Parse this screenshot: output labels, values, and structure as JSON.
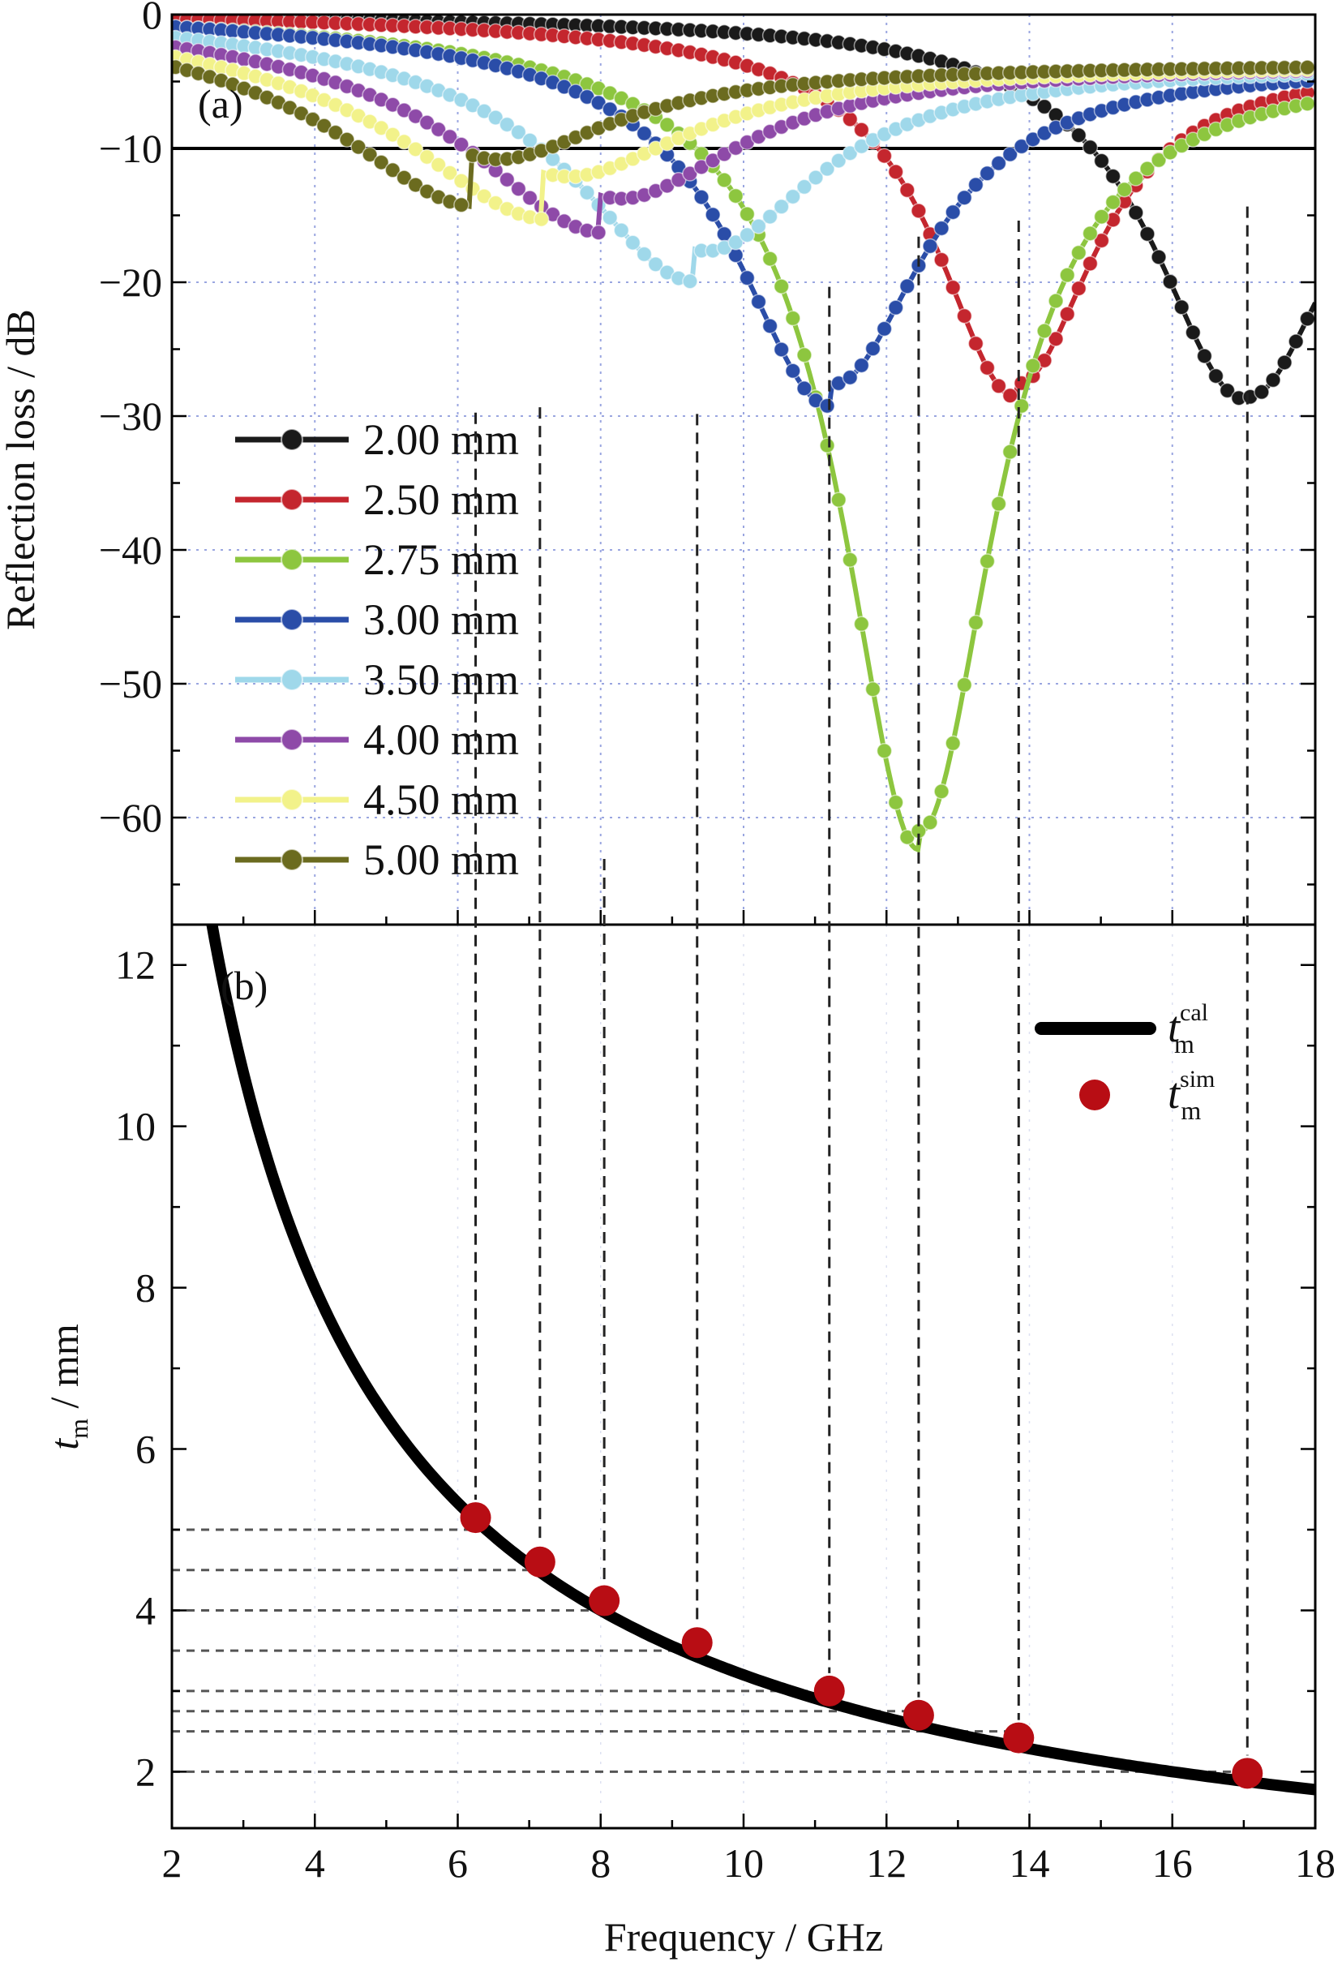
{
  "chart_data": [
    {
      "panel": "(a)",
      "type": "line",
      "ylabel": "Reflection loss / dB",
      "xlim": [
        2,
        18
      ],
      "ylim": [
        -68,
        0
      ],
      "yticks": [
        0,
        -10,
        -20,
        -30,
        -40,
        -50,
        -60
      ],
      "ytick_labels": [
        "0",
        "−10",
        "−20",
        "−30",
        "−40",
        "−50",
        "−60"
      ],
      "grid": true,
      "reference_line": -10,
      "legend_placement": "center-left",
      "series": [
        {
          "name": "2.00 mm",
          "color": "#1a1a1a",
          "f0": 17.0,
          "depth": -28.5,
          "width": 1.55,
          "lowAmp": -0.3
        },
        {
          "name": "2.50 mm",
          "color": "#c4262e",
          "f0": 13.8,
          "depth": -27.5,
          "width": 1.35,
          "lowAmp": -1.5
        },
        {
          "name": "2.75 mm",
          "color": "#8dc63f",
          "f0": 12.45,
          "depth": -61.0,
          "width": 1.3,
          "lowAmp": -2.0
        },
        {
          "name": "3.00 mm",
          "color": "#2a4da8",
          "f0": 11.2,
          "depth": -27.5,
          "width": 1.6,
          "lowAmp": -2.5
        },
        {
          "name": "3.50 mm",
          "color": "#9fd8ea",
          "f0": 9.3,
          "depth": -17.5,
          "width": 2.0,
          "lowAmp": -3.5
        },
        {
          "name": "4.00 mm",
          "color": "#8e4aa8",
          "f0": 8.0,
          "depth": -13.5,
          "width": 2.2,
          "lowAmp": -4.0
        },
        {
          "name": "4.50 mm",
          "color": "#f2f28a",
          "f0": 7.2,
          "depth": -11.8,
          "width": 2.3,
          "lowAmp": -5.0
        },
        {
          "name": "5.00 mm",
          "color": "#6b6b1f",
          "f0": 6.2,
          "depth": -10.5,
          "width": 2.2,
          "lowAmp": -5.5
        }
      ]
    },
    {
      "panel": "(b)",
      "type": "line+scatter",
      "xlabel": "Frequency / GHz",
      "ylabel_main": "t",
      "ylabel_sub": "m",
      "ylabel_rest": " / mm",
      "xlim": [
        2,
        18
      ],
      "ylim": [
        1.3,
        12.5
      ],
      "xticks": [
        2,
        4,
        6,
        8,
        10,
        12,
        14,
        16,
        18
      ],
      "xtick_labels": [
        "2",
        "4",
        "6",
        "8",
        "10",
        "12",
        "14",
        "16",
        "18"
      ],
      "yticks": [
        2,
        4,
        6,
        8,
        10,
        12
      ],
      "ytick_labels": [
        "2",
        "4",
        "6",
        "8",
        "10",
        "12"
      ],
      "legend": [
        {
          "main": "t",
          "sub": "m",
          "sup": "cal",
          "kind": "line",
          "color": "#000000"
        },
        {
          "main": "t",
          "sub": "m",
          "sup": "sim",
          "kind": "marker",
          "color": "#b80d14"
        }
      ],
      "cal_curve_constant": 32.0,
      "sim_points": [
        {
          "x": 6.25,
          "y": 5.15
        },
        {
          "x": 7.15,
          "y": 4.6
        },
        {
          "x": 8.05,
          "y": 4.12
        },
        {
          "x": 9.35,
          "y": 3.6
        },
        {
          "x": 11.2,
          "y": 3.0
        },
        {
          "x": 12.45,
          "y": 2.7
        },
        {
          "x": 13.85,
          "y": 2.42
        },
        {
          "x": 17.05,
          "y": 1.98
        }
      ],
      "guide_levels": [
        5.0,
        4.5,
        4.0,
        3.5,
        3.0,
        2.75,
        2.5,
        2.0
      ]
    }
  ]
}
